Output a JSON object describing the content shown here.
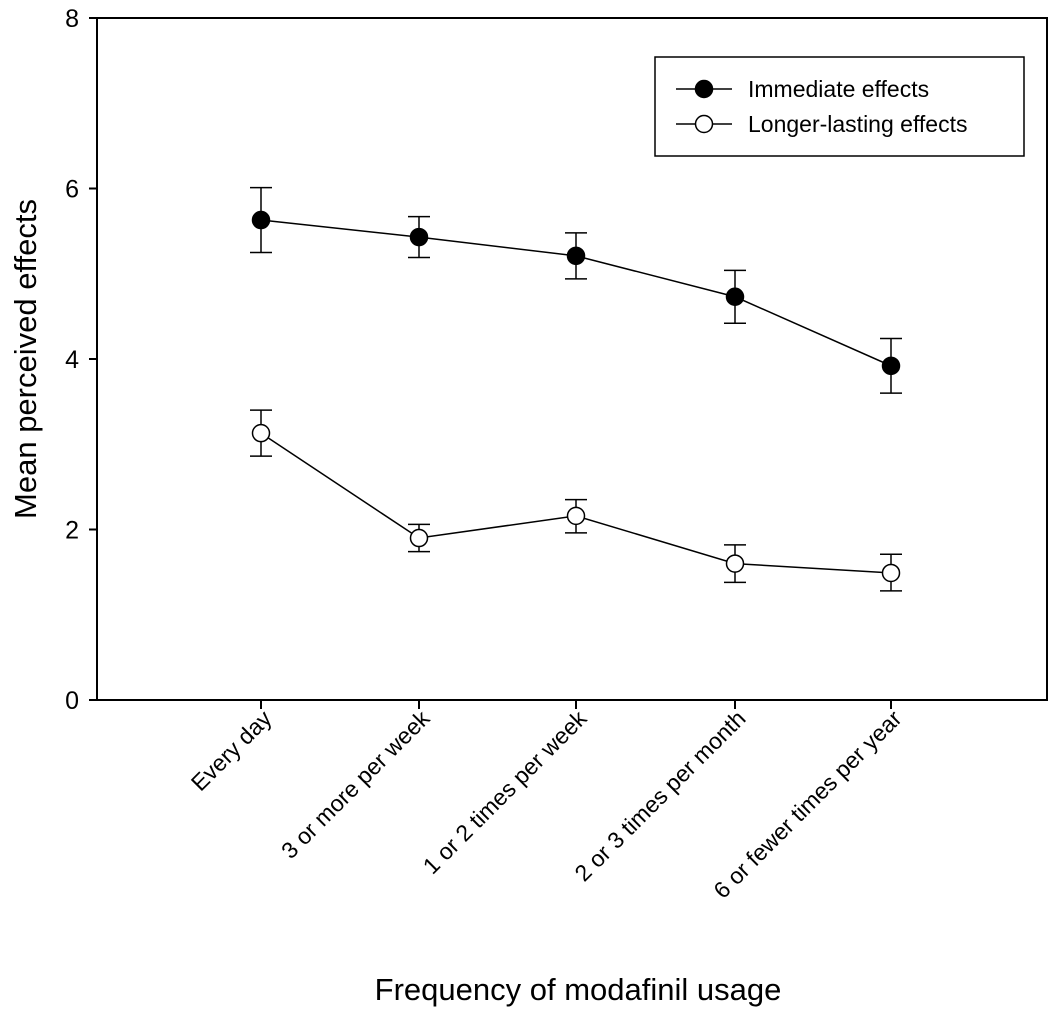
{
  "chart_data": {
    "type": "line",
    "title": "",
    "xlabel": "Frequency of modafinil usage",
    "ylabel": "Mean perceived effects",
    "ylim": [
      0,
      8
    ],
    "yticks": [
      0,
      2,
      4,
      6,
      8
    ],
    "categories": [
      "Every day",
      "3 or more per week",
      "1 or 2 times per week",
      "2 or 3 times per month",
      "6 or fewer times per year"
    ],
    "series": [
      {
        "name": "Immediate effects",
        "marker": "filled-circle",
        "values": [
          5.63,
          5.43,
          5.21,
          4.73,
          3.92
        ],
        "error_low": [
          5.25,
          5.19,
          4.94,
          4.42,
          3.6
        ],
        "error_high": [
          6.01,
          5.67,
          5.48,
          5.04,
          4.24
        ]
      },
      {
        "name": "Longer-lasting effects",
        "marker": "open-circle",
        "values": [
          3.13,
          1.9,
          2.16,
          1.6,
          1.49
        ],
        "error_low": [
          2.86,
          1.74,
          1.96,
          1.38,
          1.28
        ],
        "error_high": [
          3.4,
          2.06,
          2.35,
          1.82,
          1.71
        ]
      }
    ],
    "legend_position": "top-right",
    "grid": false,
    "colors": {
      "line": "#000000",
      "filled_marker": "#000000",
      "open_marker": "#ffffff"
    }
  }
}
